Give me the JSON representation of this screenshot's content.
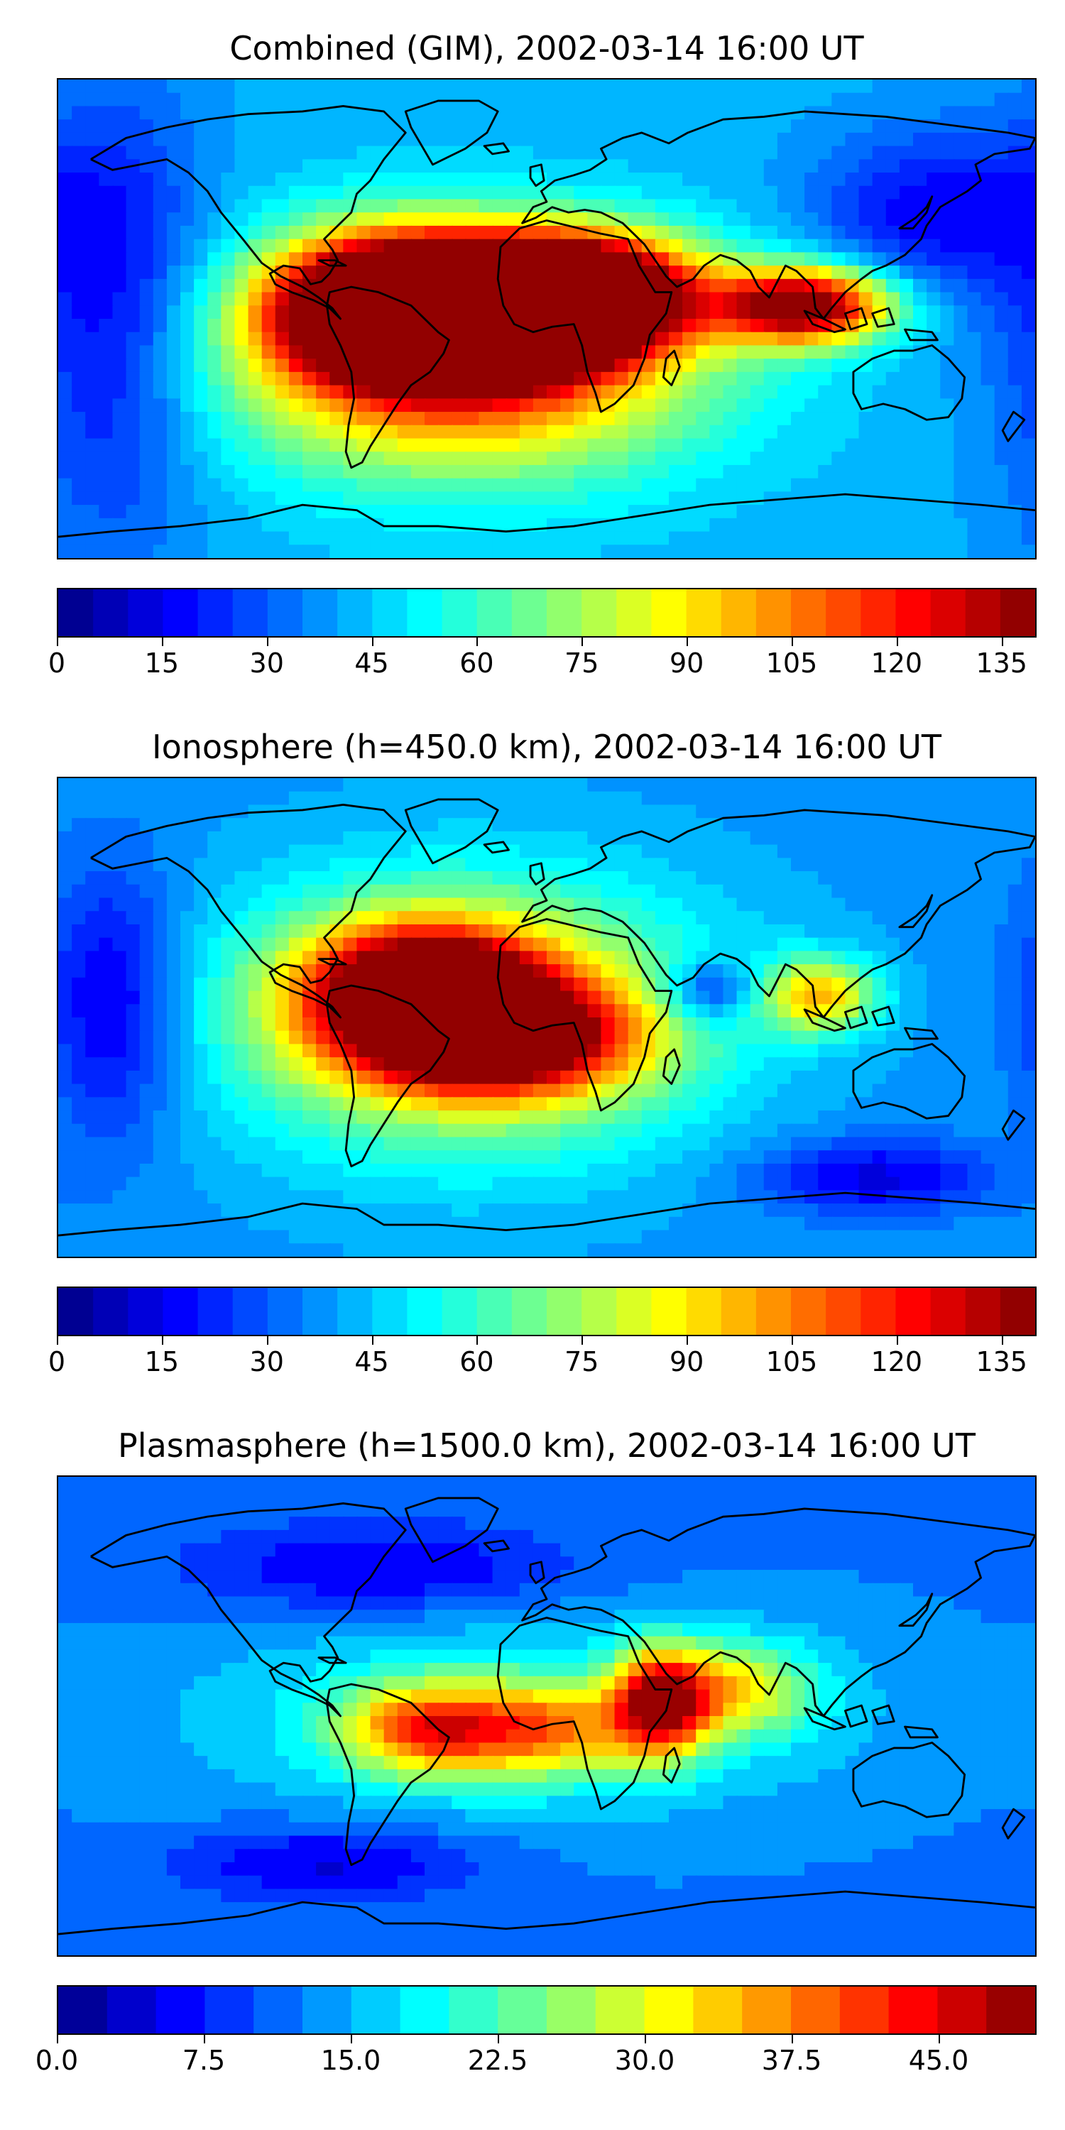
{
  "panels": [
    {
      "title": "Combined (GIM), 2002-03-14 16:00 UT",
      "colorbar": {
        "min": 0,
        "max": 140,
        "levels": 28,
        "tick_values": [
          0,
          15,
          30,
          45,
          60,
          75,
          90,
          105,
          120,
          135
        ],
        "tick_labels": [
          "0",
          "15",
          "30",
          "45",
          "60",
          "75",
          "90",
          "105",
          "120",
          "135"
        ]
      },
      "field": {
        "background": 42,
        "blobs": [
          {
            "lon": -55,
            "lat": 5,
            "value": 125,
            "sx": 30,
            "sy": 18
          },
          {
            "lon": -20,
            "lat": 0,
            "value": 125,
            "sx": 35,
            "sy": 14
          },
          {
            "lon": 10,
            "lat": 12,
            "value": 112,
            "sx": 30,
            "sy": 14
          },
          {
            "lon": 95,
            "lat": 5,
            "value": 105,
            "sx": 22,
            "sy": 10
          },
          {
            "lon": -30,
            "lat": -15,
            "value": 80,
            "sx": 60,
            "sy": 30
          },
          {
            "lon": -160,
            "lat": 0,
            "value": -28,
            "sx": 25,
            "sy": 60
          },
          {
            "lon": 140,
            "lat": 40,
            "value": -25,
            "sx": 30,
            "sy": 22
          }
        ]
      }
    },
    {
      "title": "Ionosphere  (h=450.0 km), 2002-03-14 16:00 UT",
      "colorbar": {
        "min": 0,
        "max": 140,
        "levels": 28,
        "tick_values": [
          0,
          15,
          30,
          45,
          60,
          75,
          90,
          105,
          120,
          135
        ],
        "tick_labels": [
          "0",
          "15",
          "30",
          "45",
          "60",
          "75",
          "90",
          "105",
          "120",
          "135"
        ]
      },
      "field": {
        "background": 38,
        "blobs": [
          {
            "lon": -45,
            "lat": 12,
            "value": 95,
            "sx": 30,
            "sy": 16
          },
          {
            "lon": -20,
            "lat": -8,
            "value": 90,
            "sx": 35,
            "sy": 14
          },
          {
            "lon": -30,
            "lat": 0,
            "value": 60,
            "sx": 60,
            "sy": 35
          },
          {
            "lon": 60,
            "lat": 10,
            "value": -30,
            "sx": 12,
            "sy": 8
          },
          {
            "lon": 100,
            "lat": 8,
            "value": 55,
            "sx": 15,
            "sy": 10
          },
          {
            "lon": -160,
            "lat": 5,
            "value": -28,
            "sx": 18,
            "sy": 35
          },
          {
            "lon": 120,
            "lat": -60,
            "value": -25,
            "sx": 30,
            "sy": 10
          }
        ]
      }
    },
    {
      "title": "Plasmasphere (h=1500.0 km), 2002-03-14 16:00 UT",
      "colorbar": {
        "min": 0,
        "max": 50,
        "levels": 20,
        "tick_values": [
          0,
          7.5,
          15,
          22.5,
          30,
          37.5,
          45
        ],
        "tick_labels": [
          "0.0",
          "7.5",
          "15.0",
          "22.5",
          "30.0",
          "37.5",
          "45.0"
        ]
      },
      "field": {
        "background": 12,
        "blobs": [
          {
            "lon": 42,
            "lat": 5,
            "value": 30,
            "sx": 12,
            "sy": 14
          },
          {
            "lon": -45,
            "lat": -5,
            "value": 22,
            "sx": 22,
            "sy": 12
          },
          {
            "lon": 0,
            "lat": -5,
            "value": 18,
            "sx": 25,
            "sy": 12
          },
          {
            "lon": 70,
            "lat": 10,
            "value": 16,
            "sx": 20,
            "sy": 12
          },
          {
            "lon": -10,
            "lat": 0,
            "value": 8,
            "sx": 90,
            "sy": 28
          },
          {
            "lon": -60,
            "lat": 55,
            "value": -8,
            "sx": 50,
            "sy": 12
          },
          {
            "lon": -80,
            "lat": -55,
            "value": -8,
            "sx": 40,
            "sy": 10
          }
        ]
      }
    }
  ]
}
